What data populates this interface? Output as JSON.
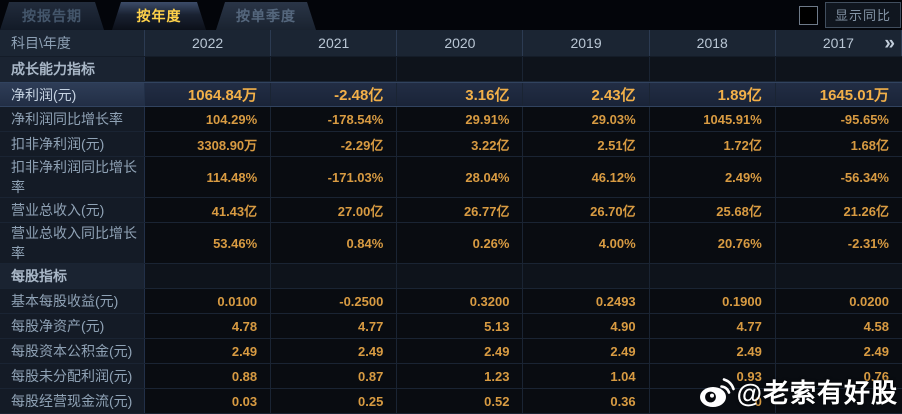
{
  "tabs": [
    {
      "label": "按报告期",
      "active": false
    },
    {
      "label": "按年度",
      "active": true
    },
    {
      "label": "按单季度",
      "active": false
    }
  ],
  "controls": {
    "show_yoy_label": "显示同比",
    "yoy_checkbox_checked": false
  },
  "table": {
    "corner_label": "科目\\年度",
    "years": [
      "2022",
      "2021",
      "2020",
      "2019",
      "2018",
      "2017"
    ],
    "more_icon": "»",
    "rows": [
      {
        "type": "section",
        "label": "成长能力指标",
        "values": [
          "",
          "",
          "",
          "",
          "",
          ""
        ]
      },
      {
        "type": "data",
        "highlight": true,
        "label": "净利润(元)",
        "values": [
          "1064.84万",
          "-2.48亿",
          "3.16亿",
          "2.43亿",
          "1.89亿",
          "1645.01万"
        ]
      },
      {
        "type": "data",
        "highlight": false,
        "label": "净利润同比增长率",
        "values": [
          "104.29%",
          "-178.54%",
          "29.91%",
          "29.03%",
          "1045.91%",
          "-95.65%"
        ]
      },
      {
        "type": "data",
        "highlight": false,
        "label": "扣非净利润(元)",
        "values": [
          "3308.90万",
          "-2.29亿",
          "3.22亿",
          "2.51亿",
          "1.72亿",
          "1.68亿"
        ]
      },
      {
        "type": "data",
        "highlight": false,
        "label": "扣非净利润同比增长率",
        "values": [
          "114.48%",
          "-171.03%",
          "28.04%",
          "46.12%",
          "2.49%",
          "-56.34%"
        ]
      },
      {
        "type": "data",
        "highlight": false,
        "label": "营业总收入(元)",
        "values": [
          "41.43亿",
          "27.00亿",
          "26.77亿",
          "26.70亿",
          "25.68亿",
          "21.26亿"
        ]
      },
      {
        "type": "data",
        "highlight": false,
        "label": "营业总收入同比增长率",
        "values": [
          "53.46%",
          "0.84%",
          "0.26%",
          "4.00%",
          "20.76%",
          "-2.31%"
        ]
      },
      {
        "type": "section",
        "label": "每股指标",
        "values": [
          "",
          "",
          "",
          "",
          "",
          ""
        ]
      },
      {
        "type": "data",
        "highlight": false,
        "label": "基本每股收益(元)",
        "values": [
          "0.0100",
          "-0.2500",
          "0.3200",
          "0.2493",
          "0.1900",
          "0.0200"
        ]
      },
      {
        "type": "data",
        "highlight": false,
        "label": "每股净资产(元)",
        "values": [
          "4.78",
          "4.77",
          "5.13",
          "4.90",
          "4.77",
          "4.58"
        ]
      },
      {
        "type": "data",
        "highlight": false,
        "label": "每股资本公积金(元)",
        "values": [
          "2.49",
          "2.49",
          "2.49",
          "2.49",
          "2.49",
          "2.49"
        ]
      },
      {
        "type": "data",
        "highlight": false,
        "label": "每股未分配利润(元)",
        "values": [
          "0.88",
          "0.87",
          "1.23",
          "1.04",
          "0.93",
          "0.76"
        ]
      },
      {
        "type": "data",
        "highlight": false,
        "label": "每股经营现金流(元)",
        "values": [
          "0.03",
          "0.25",
          "0.52",
          "0.36",
          "0",
          ""
        ]
      }
    ]
  },
  "watermark": {
    "icon": "weibo-icon",
    "handle": "@老索有好股"
  },
  "colors": {
    "active_tab_text": "#ffd24a",
    "value_orange": "#d89b42",
    "highlight_value": "#f2b049",
    "header_bg": "#1b2533",
    "label_col_bg": "#141b26",
    "data_bg": "#090c11",
    "highlight_row_bg": "#222d44",
    "grid_line": "#223048",
    "year_text": "#b9c6d4",
    "watermark_text": "#ffffff"
  }
}
